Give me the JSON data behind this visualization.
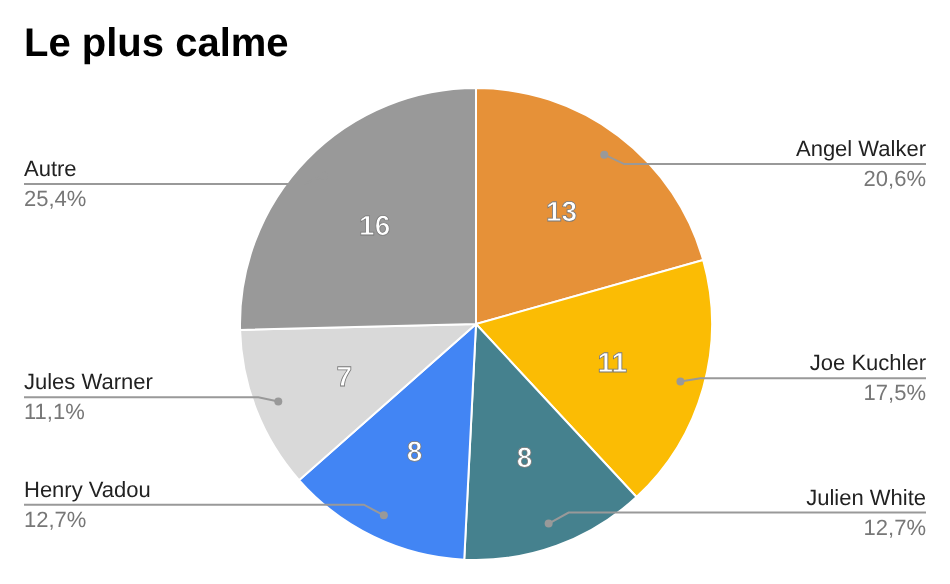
{
  "chart_data": {
    "type": "pie",
    "title": "Le plus calme",
    "categories": [
      "Angel Walker",
      "Joe Kuchler",
      "Julien White",
      "Henry Vadou",
      "Jules Warner",
      "Autre"
    ],
    "values": [
      13,
      11,
      8,
      8,
      7,
      16
    ],
    "colors": [
      "#e69138",
      "#fbbc04",
      "#45818e",
      "#4285f4",
      "#d9d9d9",
      "#999999"
    ],
    "value_labels": [
      "13",
      "11",
      "8",
      "8",
      "7",
      "16"
    ],
    "annotations": [
      "20,6%",
      "17,5%",
      "12,7%",
      "12,7%",
      "11,1%",
      "25,4%"
    ],
    "legend": false
  }
}
